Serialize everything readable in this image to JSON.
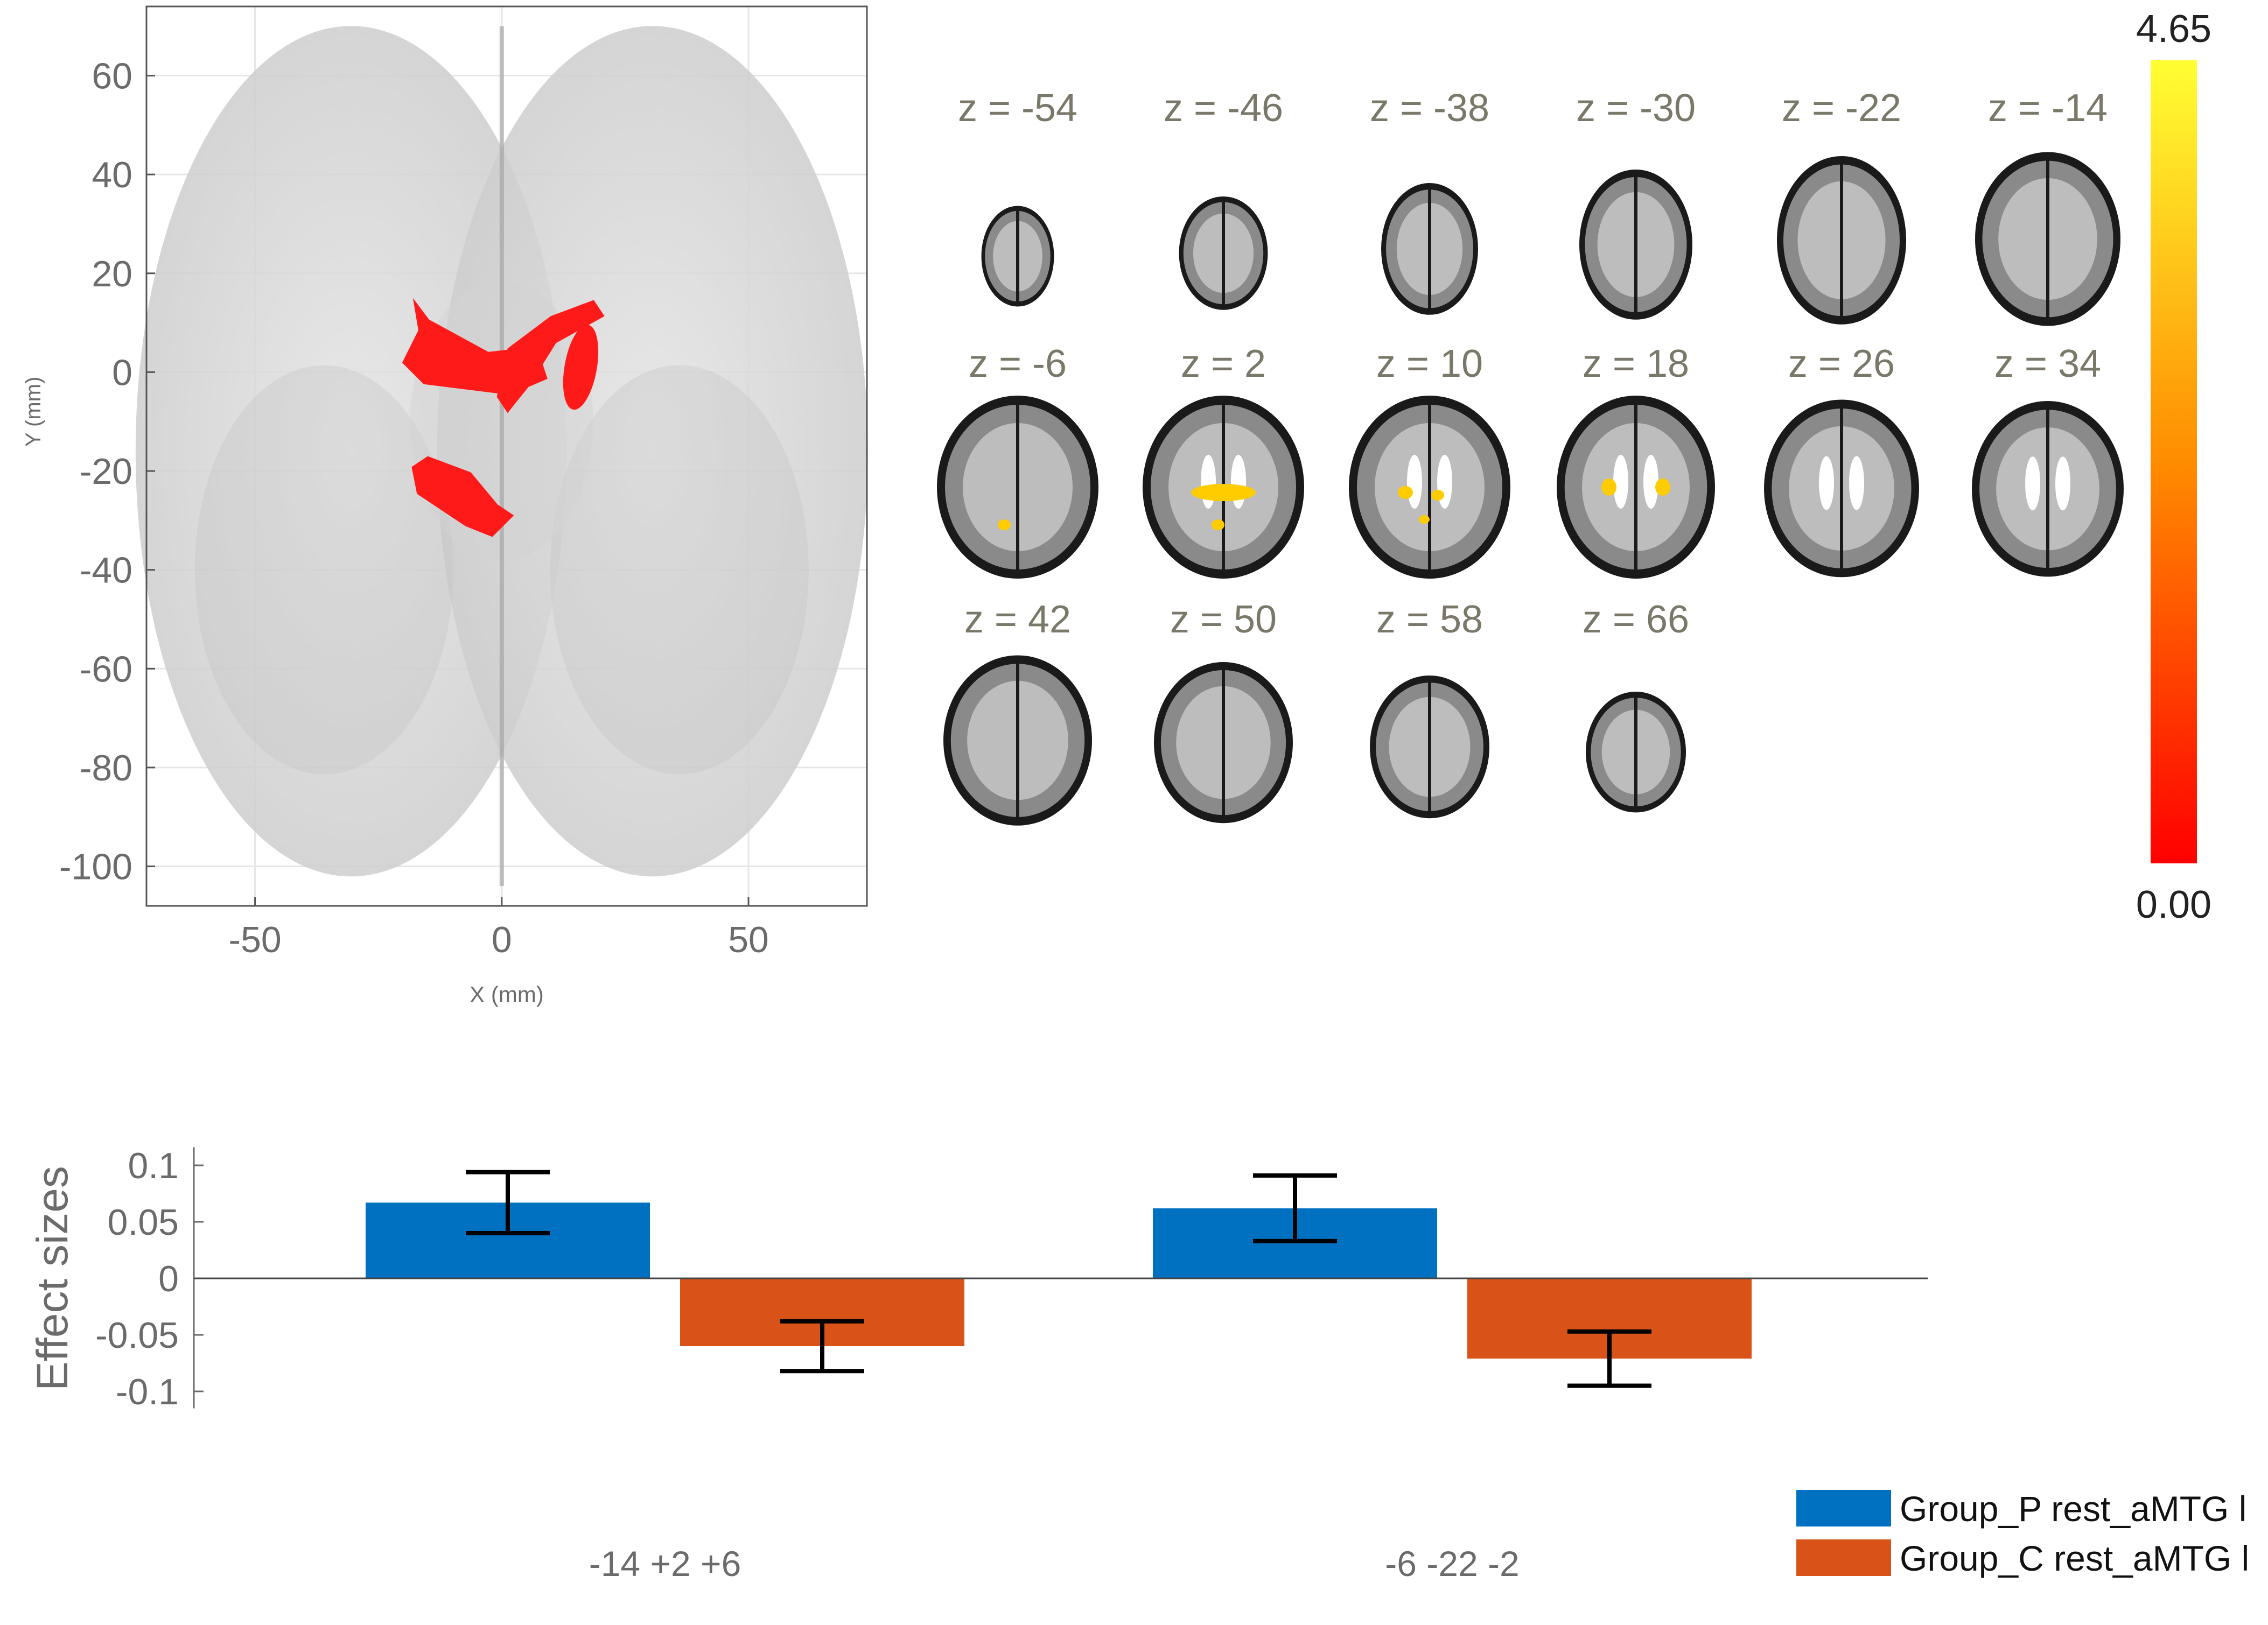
{
  "chart_data": [
    {
      "type": "scatter",
      "description_role": "glass-brain axial projection",
      "xlabel": "X (mm)",
      "ylabel": "Y (mm)",
      "xlim": [
        -72,
        74
      ],
      "ylim": [
        -108,
        74
      ],
      "xticks": [
        -50,
        0,
        50
      ],
      "yticks": [
        60,
        40,
        20,
        0,
        -20,
        -40,
        -60,
        -80,
        -100
      ],
      "grid": true,
      "clusters": [
        {
          "x": -17,
          "y": 3
        },
        {
          "x": 8,
          "y": 2
        },
        {
          "x": -3,
          "y": -21
        }
      ],
      "cluster_color": "#ff1a1a"
    },
    {
      "type": "heatmap",
      "slices": [
        "z = -54",
        "z = -46",
        "z = -38",
        "z = -30",
        "z = -22",
        "z = -14",
        "z = -6",
        "z = 2",
        "z = 10",
        "z = 18",
        "z = 26",
        "z = 34",
        "z = 42",
        "z = 50",
        "z = 58",
        "z = 66"
      ],
      "colorbar": {
        "max_label": "4.65",
        "min_label": "0.00",
        "max": 4.65,
        "min": 0.0,
        "colors": [
          "#ff0000",
          "#ff8c00",
          "#ffff33"
        ]
      }
    },
    {
      "type": "bar",
      "categories": [
        "-14 +2 +6",
        "-6 -22 -2"
      ],
      "ylabel": "Effect sizes",
      "ylim": [
        -0.11,
        0.115
      ],
      "yticks": [
        0.1,
        0.05,
        0,
        -0.05,
        -0.1
      ],
      "series": [
        {
          "name": "Group_P rest_aMTG l",
          "color": "#0070c0",
          "values": [
            0.067,
            0.062
          ],
          "err": [
            0.027,
            0.029
          ]
        },
        {
          "name": "Group_C rest_aMTG l",
          "color": "#d95319",
          "values": [
            -0.06,
            -0.071
          ],
          "err": [
            0.022,
            0.024
          ]
        }
      ],
      "legend": "bottom-right"
    }
  ]
}
